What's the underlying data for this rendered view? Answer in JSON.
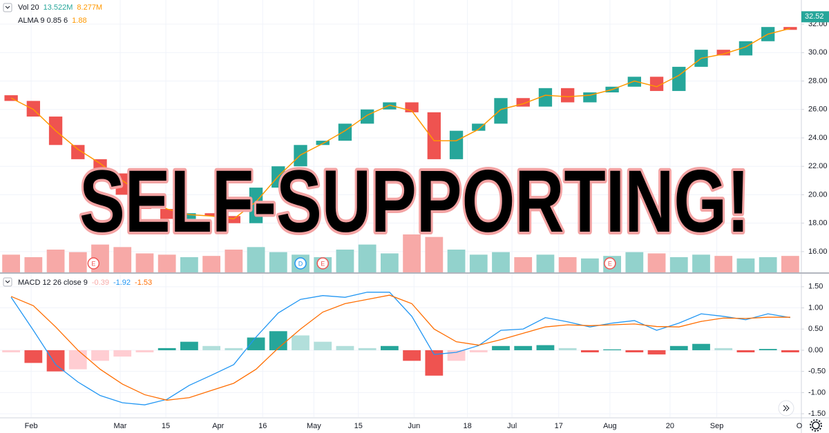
{
  "chart_data": {
    "type": "candlestick",
    "title": "SELF-SUPPORTING!",
    "legend": {
      "volume": {
        "label": "Vol 20",
        "values": [
          {
            "text": "13.522M",
            "color": "#26a69a"
          },
          {
            "text": "8.277M",
            "color": "#ff9800"
          }
        ]
      },
      "alma": {
        "label": "ALMA 9 0.85 6",
        "values": [
          {
            "text": "1.88",
            "color": "#ff9800"
          }
        ]
      },
      "macd": {
        "label": "MACD 12 26 close 9",
        "values": [
          {
            "text": "-0.39",
            "color": "#f7a9a7"
          },
          {
            "text": "-1.92",
            "color": "#2196f3"
          },
          {
            "text": "-1.53",
            "color": "#ff6d00"
          }
        ]
      }
    },
    "colors": {
      "up": "#26a69a",
      "down": "#ef5350",
      "up_volume": "#92d2cc",
      "down_volume": "#f7a9a7",
      "alma": "#ff9800"
    },
    "open": [
      27.0,
      26.6,
      25.5,
      23.5,
      22.5,
      21.5,
      20.0,
      19.0,
      18.3,
      18.7,
      18.5,
      18.0,
      20.5,
      22.0,
      23.5,
      23.8,
      25.0,
      26.0,
      26.5,
      25.8,
      22.5,
      24.5,
      25.0,
      26.8,
      26.2,
      27.5,
      26.5,
      27.2,
      27.6,
      28.3,
      27.3,
      29.0,
      30.2,
      29.8,
      30.8,
      31.8
    ],
    "close": [
      26.6,
      25.5,
      23.5,
      22.5,
      21.5,
      20.0,
      19.0,
      18.3,
      18.7,
      18.5,
      18.0,
      20.5,
      22.0,
      23.5,
      23.8,
      25.0,
      26.0,
      26.5,
      25.8,
      22.5,
      24.5,
      25.0,
      26.8,
      26.2,
      27.5,
      26.5,
      27.2,
      27.6,
      28.3,
      27.3,
      29.0,
      30.2,
      29.8,
      30.8,
      31.8,
      31.6
    ],
    "volume": [
      14,
      12,
      18,
      16,
      22,
      20,
      15,
      14,
      12,
      13,
      18,
      20,
      16,
      14,
      12,
      18,
      22,
      15,
      30,
      28,
      18,
      14,
      16,
      12,
      14,
      12,
      11,
      13,
      16,
      15,
      12,
      14,
      13,
      11,
      12,
      13
    ],
    "alma": [
      26.8,
      26.0,
      24.5,
      23.2,
      22.2,
      21.0,
      19.9,
      19.0,
      18.6,
      18.5,
      18.3,
      19.5,
      21.3,
      22.8,
      23.6,
      24.5,
      25.6,
      26.3,
      25.9,
      23.8,
      23.8,
      24.6,
      26.0,
      26.4,
      27.0,
      26.9,
      27.0,
      27.4,
      28.0,
      27.6,
      28.4,
      29.6,
      29.9,
      30.4,
      31.3,
      31.7
    ],
    "ylim": [
      14.54,
      33.7
    ],
    "yticks": [
      {
        "value": 16,
        "label": "16.00"
      },
      {
        "value": 18,
        "label": "18.00"
      },
      {
        "value": 20,
        "label": "20.00"
      },
      {
        "value": 22,
        "label": "22.00"
      },
      {
        "value": 24,
        "label": "24.00"
      },
      {
        "value": 26,
        "label": "26.00"
      },
      {
        "value": 28,
        "label": "28.00"
      },
      {
        "value": 30,
        "label": "30.00"
      },
      {
        "value": 32,
        "label": "32.00"
      }
    ],
    "last_price": {
      "value": 32.52,
      "label": "32.52"
    },
    "xlim": [
      -0.5,
      35.5
    ],
    "xticks": [
      {
        "value": 0.9,
        "label": "Feb"
      },
      {
        "value": 4.9,
        "label": "Mar"
      },
      {
        "value": 6.95,
        "label": "15"
      },
      {
        "value": 9.3,
        "label": "Apr"
      },
      {
        "value": 11.3,
        "label": "16"
      },
      {
        "value": 13.6,
        "label": "May"
      },
      {
        "value": 15.6,
        "label": "15"
      },
      {
        "value": 18.1,
        "label": "Jun"
      },
      {
        "value": 20.5,
        "label": "18"
      },
      {
        "value": 22.5,
        "label": "Jul"
      },
      {
        "value": 24.6,
        "label": "17"
      },
      {
        "value": 26.9,
        "label": "Aug"
      },
      {
        "value": 29.6,
        "label": "20"
      },
      {
        "value": 31.7,
        "label": "Sep"
      },
      {
        "value": 35.5,
        "label": "O"
      }
    ],
    "events": [
      {
        "x": 3.7,
        "label": "E",
        "color": "#ef5350"
      },
      {
        "x": 13.0,
        "label": "D",
        "color": "#2196f3"
      },
      {
        "x": 14.0,
        "label": "E",
        "color": "#ef5350"
      },
      {
        "x": 26.9,
        "label": "E",
        "color": "#ef5350"
      }
    ],
    "macd": {
      "series": [
        {
          "color": "#2196f3",
          "values": [
            1.25,
            0.47,
            -0.34,
            -0.75,
            -1.07,
            -1.24,
            -1.29,
            -1.16,
            -0.83,
            -0.59,
            -0.34,
            0.31,
            0.88,
            1.2,
            1.29,
            1.25,
            1.37,
            1.37,
            0.8,
            -0.1,
            -0.05,
            0.11,
            0.47,
            0.5,
            0.77,
            0.67,
            0.55,
            0.64,
            0.7,
            0.47,
            0.64,
            0.86,
            0.8,
            0.72,
            0.86,
            0.77
          ]
        },
        {
          "color": "#ff6d00",
          "values": [
            1.27,
            1.05,
            0.55,
            0.0,
            -0.45,
            -0.8,
            -1.05,
            -1.18,
            -1.12,
            -0.95,
            -0.78,
            -0.45,
            0.05,
            0.5,
            0.9,
            1.1,
            1.2,
            1.3,
            1.1,
            0.5,
            0.2,
            0.12,
            0.25,
            0.4,
            0.55,
            0.6,
            0.58,
            0.6,
            0.62,
            0.56,
            0.55,
            0.68,
            0.76,
            0.75,
            0.78,
            0.78
          ]
        }
      ],
      "histogram": [
        -0.05,
        -0.3,
        -0.5,
        -0.45,
        -0.25,
        -0.15,
        -0.05,
        0.05,
        0.2,
        0.1,
        0.05,
        0.3,
        0.45,
        0.35,
        0.2,
        0.1,
        0.05,
        0.1,
        -0.25,
        -0.6,
        -0.25,
        -0.05,
        0.1,
        0.1,
        0.12,
        0.05,
        -0.05,
        0.02,
        -0.05,
        -0.1,
        0.1,
        0.15,
        0.05,
        -0.05,
        0.03,
        -0.05
      ],
      "ylim": [
        -1.58,
        1.79
      ],
      "yticks": [
        {
          "value": 1.5,
          "label": "1.50"
        },
        {
          "value": 1,
          "label": "1.00"
        },
        {
          "value": 0.5,
          "label": "0.50"
        },
        {
          "value": 0,
          "label": "0.00"
        },
        {
          "value": -0.5,
          "label": "-0.50"
        },
        {
          "value": -1,
          "label": "-1.00"
        },
        {
          "value": -1.5,
          "label": "-1.50"
        }
      ]
    }
  }
}
